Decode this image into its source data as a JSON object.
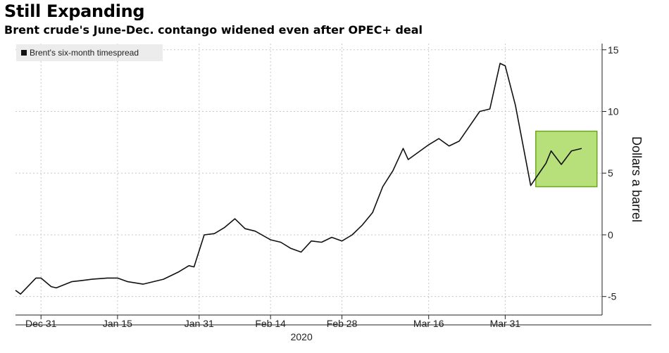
{
  "header": {
    "title": "Still Expanding",
    "subtitle": "Brent crude's June-Dec. contango widened even after OPEC+ deal"
  },
  "colors": {
    "line": "#111111",
    "highlight_fill": "#b8e07a",
    "highlight_stroke": "#6aa819",
    "grid": "#c8c8c8",
    "legend_bg": "#ececec"
  },
  "chart_data": {
    "type": "line",
    "title": "Still Expanding",
    "subtitle": "Brent crude's June-Dec. contango widened even after OPEC+ deal",
    "xlabel": "2020",
    "ylabel": "Dollars a barrel",
    "ylim": [
      -6.5,
      15.5
    ],
    "yticks": [
      -5,
      0,
      5,
      10,
      15
    ],
    "ytick_labels": [
      "-5",
      "0",
      "5",
      "10",
      "15"
    ],
    "xticks": [
      {
        "date": "2019-12-31",
        "label": "Dec 31"
      },
      {
        "date": "2020-01-15",
        "label": "Jan 15"
      },
      {
        "date": "2020-01-31",
        "label": "Jan 31"
      },
      {
        "date": "2020-02-14",
        "label": "Feb 14"
      },
      {
        "date": "2020-02-28",
        "label": "Feb 28"
      },
      {
        "date": "2020-03-16",
        "label": "Mar 16"
      },
      {
        "date": "2020-03-31",
        "label": "Mar 31"
      }
    ],
    "xlim": [
      "2019-12-26",
      "2020-04-19"
    ],
    "grid": true,
    "legend_position": "top-left",
    "series": [
      {
        "name": "Brent's six-month timespread",
        "points": [
          [
            "2019-12-26",
            -4.5
          ],
          [
            "2019-12-27",
            -4.8
          ],
          [
            "2019-12-30",
            -3.5
          ],
          [
            "2019-12-31",
            -3.5
          ],
          [
            "2020-01-02",
            -4.2
          ],
          [
            "2020-01-03",
            -4.3
          ],
          [
            "2020-01-06",
            -3.8
          ],
          [
            "2020-01-08",
            -3.7
          ],
          [
            "2020-01-10",
            -3.6
          ],
          [
            "2020-01-13",
            -3.5
          ],
          [
            "2020-01-15",
            -3.5
          ],
          [
            "2020-01-17",
            -3.8
          ],
          [
            "2020-01-20",
            -4.0
          ],
          [
            "2020-01-22",
            -3.8
          ],
          [
            "2020-01-24",
            -3.6
          ],
          [
            "2020-01-27",
            -3.0
          ],
          [
            "2020-01-29",
            -2.5
          ],
          [
            "2020-01-30",
            -2.6
          ],
          [
            "2020-02-01",
            0.0
          ],
          [
            "2020-02-03",
            0.1
          ],
          [
            "2020-02-05",
            0.6
          ],
          [
            "2020-02-07",
            1.3
          ],
          [
            "2020-02-09",
            0.5
          ],
          [
            "2020-02-11",
            0.3
          ],
          [
            "2020-02-14",
            -0.4
          ],
          [
            "2020-02-16",
            -0.6
          ],
          [
            "2020-02-18",
            -1.1
          ],
          [
            "2020-02-20",
            -1.4
          ],
          [
            "2020-02-22",
            -0.5
          ],
          [
            "2020-02-24",
            -0.6
          ],
          [
            "2020-02-26",
            -0.2
          ],
          [
            "2020-02-28",
            -0.5
          ],
          [
            "2020-03-01",
            0.0
          ],
          [
            "2020-03-03",
            0.8
          ],
          [
            "2020-03-05",
            1.8
          ],
          [
            "2020-03-07",
            3.9
          ],
          [
            "2020-03-09",
            5.2
          ],
          [
            "2020-03-11",
            7.0
          ],
          [
            "2020-03-12",
            6.1
          ],
          [
            "2020-03-14",
            6.7
          ],
          [
            "2020-03-16",
            7.3
          ],
          [
            "2020-03-18",
            7.8
          ],
          [
            "2020-03-20",
            7.2
          ],
          [
            "2020-03-22",
            7.6
          ],
          [
            "2020-03-24",
            8.8
          ],
          [
            "2020-03-26",
            10.0
          ],
          [
            "2020-03-28",
            10.2
          ],
          [
            "2020-03-30",
            13.9
          ],
          [
            "2020-03-31",
            13.7
          ],
          [
            "2020-04-02",
            10.5
          ],
          [
            "2020-04-05",
            4.0
          ],
          [
            "2020-04-08",
            5.8
          ],
          [
            "2020-04-09",
            6.8
          ],
          [
            "2020-04-11",
            5.7
          ],
          [
            "2020-04-13",
            6.8
          ],
          [
            "2020-04-15",
            7.0
          ]
        ]
      }
    ],
    "annotations": [
      {
        "type": "highlight_box",
        "x_range": [
          "2020-04-06",
          "2020-04-18"
        ],
        "y_range": [
          3.9,
          8.4
        ]
      }
    ]
  }
}
